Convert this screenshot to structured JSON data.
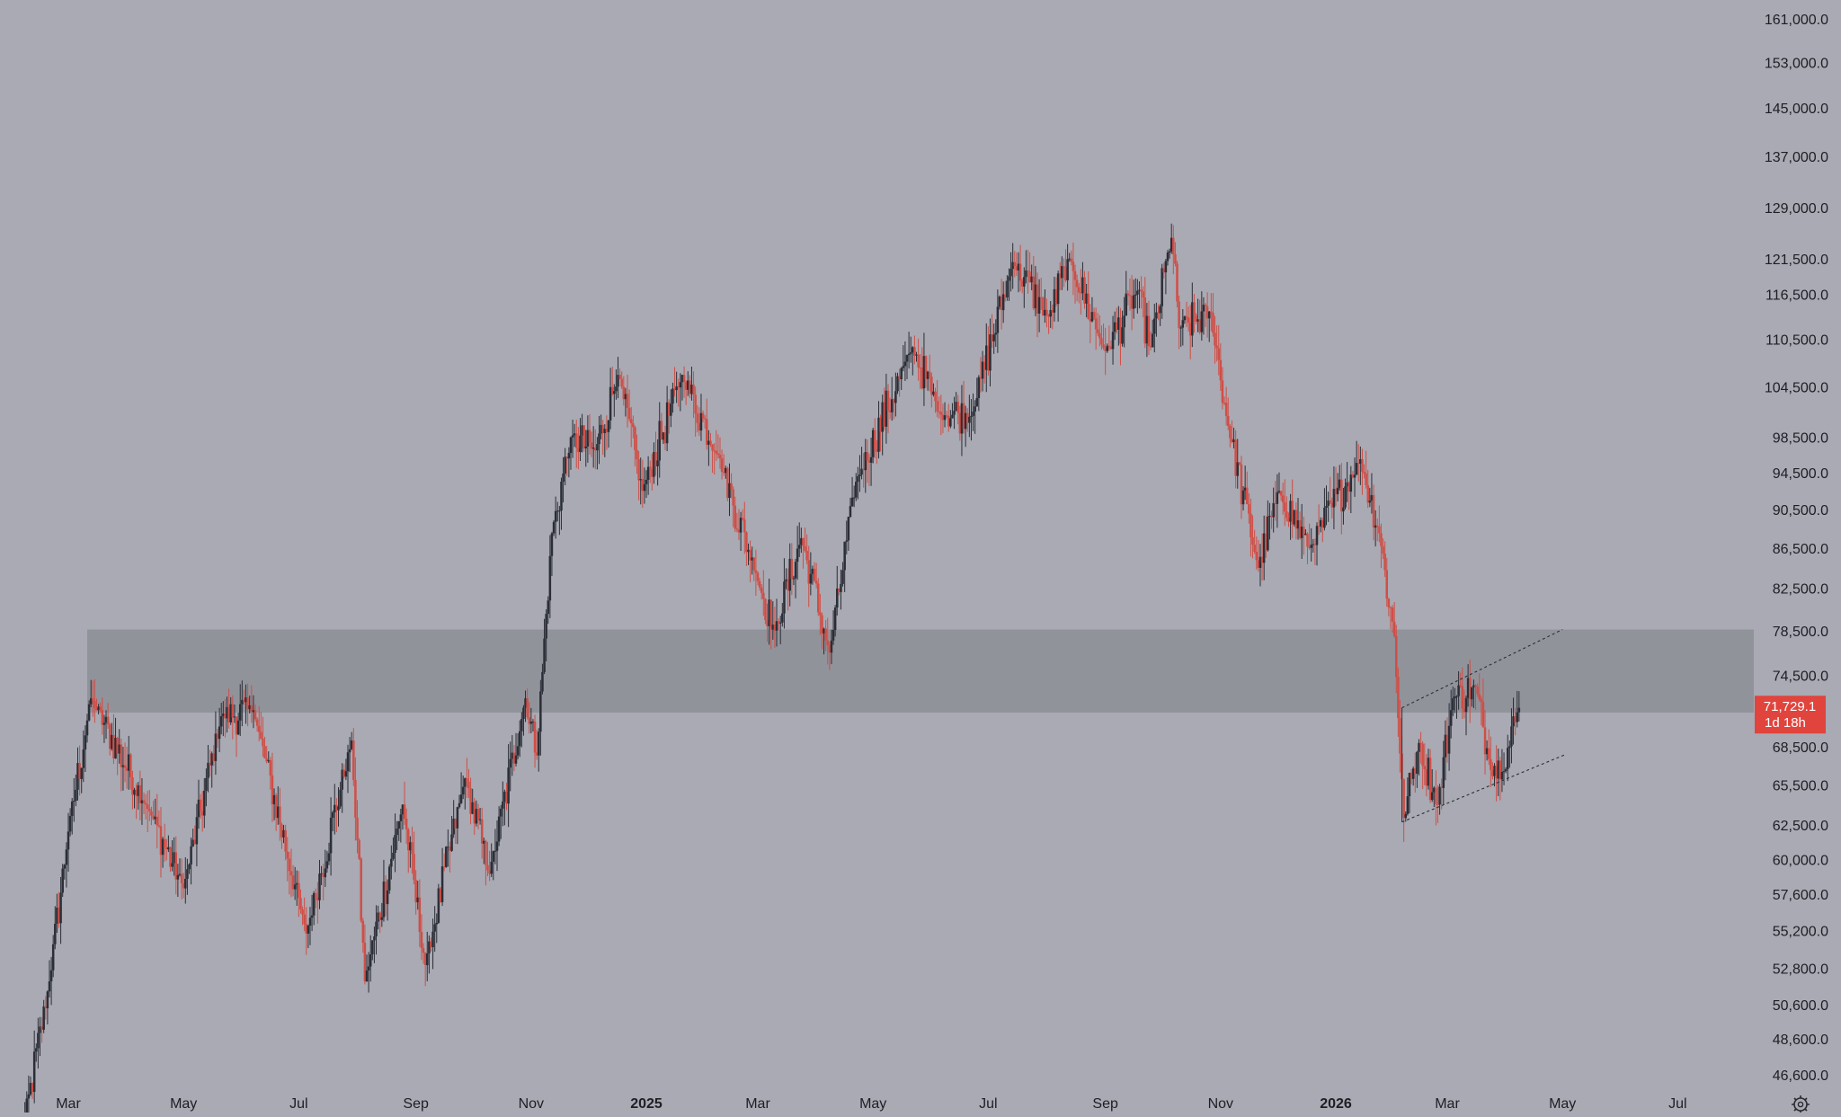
{
  "chart_data": {
    "type": "candlestick",
    "price_scale": "log",
    "y_ticks": [
      "161,000.0",
      "153,000.0",
      "145,000.0",
      "137,000.0",
      "129,000.0",
      "121,500.0",
      "116,500.0",
      "110,500.0",
      "104,500.0",
      "98,500.0",
      "94,500.0",
      "90,500.0",
      "86,500.0",
      "82,500.0",
      "78,500.0",
      "74,500.0",
      "68,500.0",
      "65,500.0",
      "62,500.0",
      "60,000.0",
      "57,600.0",
      "55,200.0",
      "52,800.0",
      "50,600.0",
      "48,600.0",
      "46,600.0"
    ],
    "x_ticks": [
      {
        "label": "Mar",
        "date": "2024-03-01",
        "bold": false
      },
      {
        "label": "May",
        "date": "2024-05-01",
        "bold": false
      },
      {
        "label": "Jul",
        "date": "2024-07-01",
        "bold": false
      },
      {
        "label": "Sep",
        "date": "2024-09-01",
        "bold": false
      },
      {
        "label": "Nov",
        "date": "2024-11-01",
        "bold": false
      },
      {
        "label": "2025",
        "date": "2025-01-01",
        "bold": true
      },
      {
        "label": "Mar",
        "date": "2025-03-01",
        "bold": false
      },
      {
        "label": "May",
        "date": "2025-05-01",
        "bold": false
      },
      {
        "label": "Jul",
        "date": "2025-07-01",
        "bold": false
      },
      {
        "label": "Sep",
        "date": "2025-09-01",
        "bold": false
      },
      {
        "label": "Nov",
        "date": "2025-11-01",
        "bold": false
      },
      {
        "label": "2026",
        "date": "2026-01-01",
        "bold": true
      },
      {
        "label": "Mar",
        "date": "2026-03-01",
        "bold": false
      },
      {
        "label": "May",
        "date": "2026-05-01",
        "bold": false
      },
      {
        "label": "Jul",
        "date": "2026-07-01",
        "bold": false
      }
    ],
    "key_points": [
      [
        "2024-02-05",
        43000
      ],
      [
        "2024-02-20",
        52000
      ],
      [
        "2024-03-01",
        62000
      ],
      [
        "2024-03-13",
        72500
      ],
      [
        "2024-04-13",
        63500
      ],
      [
        "2024-05-01",
        58000
      ],
      [
        "2024-05-21",
        71000
      ],
      [
        "2024-06-07",
        71500
      ],
      [
        "2024-07-05",
        55000
      ],
      [
        "2024-07-29",
        69000
      ],
      [
        "2024-08-05",
        52000
      ],
      [
        "2024-08-25",
        64000
      ],
      [
        "2024-09-06",
        53000
      ],
      [
        "2024-09-27",
        66000
      ],
      [
        "2024-10-10",
        59000
      ],
      [
        "2024-10-29",
        72500
      ],
      [
        "2024-11-04",
        67800
      ],
      [
        "2024-11-12",
        88000
      ],
      [
        "2024-11-22",
        98500
      ],
      [
        "2024-12-05",
        97000
      ],
      [
        "2024-12-17",
        106000
      ],
      [
        "2024-12-30",
        92500
      ],
      [
        "2025-01-20",
        106000
      ],
      [
        "2025-02-08",
        96500
      ],
      [
        "2025-02-28",
        84000
      ],
      [
        "2025-03-10",
        78500
      ],
      [
        "2025-03-24",
        87500
      ],
      [
        "2025-04-08",
        76500
      ],
      [
        "2025-04-22",
        93500
      ],
      [
        "2025-05-22",
        109500
      ],
      [
        "2025-06-05",
        101500
      ],
      [
        "2025-06-22",
        101000
      ],
      [
        "2025-07-14",
        121000
      ],
      [
        "2025-08-02",
        113500
      ],
      [
        "2025-08-13",
        121500
      ],
      [
        "2025-09-01",
        109000
      ],
      [
        "2025-09-18",
        117000
      ],
      [
        "2025-09-25",
        109500
      ],
      [
        "2025-10-06",
        124500
      ],
      [
        "2025-10-10",
        112000
      ],
      [
        "2025-10-27",
        114000
      ],
      [
        "2025-11-04",
        101000
      ],
      [
        "2025-11-21",
        84500
      ],
      [
        "2025-12-02",
        92500
      ],
      [
        "2025-12-18",
        86500
      ],
      [
        "2026-01-14",
        96000
      ],
      [
        "2026-01-24",
        88000
      ],
      [
        "2026-02-01",
        78000
      ],
      [
        "2026-02-06",
        63000
      ],
      [
        "2026-02-14",
        68800
      ],
      [
        "2026-02-24",
        64000
      ],
      [
        "2026-03-04",
        72500
      ],
      [
        "2026-03-16",
        73500
      ],
      [
        "2026-03-23",
        67500
      ],
      [
        "2026-03-30",
        66500
      ],
      [
        "2026-04-08",
        71700
      ]
    ],
    "zone": {
      "low": 71300,
      "high": 78600
    },
    "channel": {
      "upper": [
        [
          "2026-02-05",
          71700
        ],
        [
          "2026-05-01",
          78600
        ]
      ],
      "lower": [
        [
          "2026-02-05",
          62700
        ],
        [
          "2026-05-03",
          67900
        ]
      ]
    },
    "last_price": {
      "value": 71729.1,
      "label": "71,729.1",
      "countdown": "1d 18h"
    },
    "colors": {
      "background": "#a9aab3",
      "up": "#2b2e36",
      "down": "#d04e46",
      "zone": "#8e9098",
      "price_label": "#e0443c",
      "text": "#1e1f24"
    }
  }
}
